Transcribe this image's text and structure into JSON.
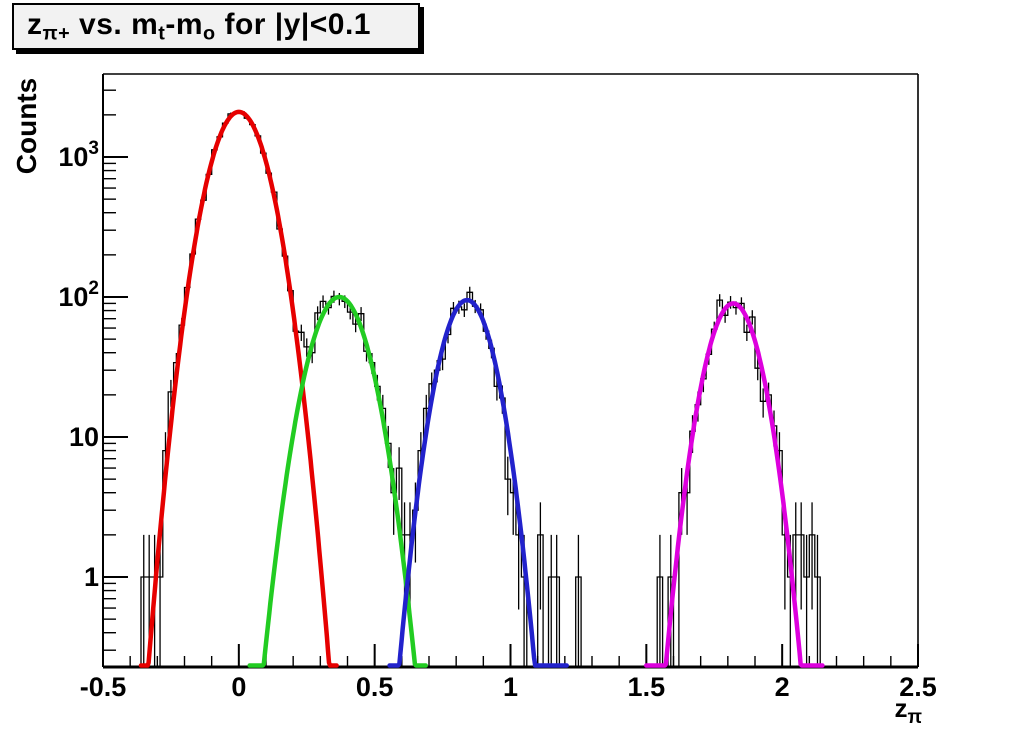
{
  "chart_data": {
    "type": "histogram",
    "title_plain": "z_{pi+} vs. m_t-m_o for |y|<0.1",
    "title_parts": [
      {
        "t": "z"
      },
      {
        "t": "π+",
        "sub": true
      },
      {
        "t": " vs. m"
      },
      {
        "t": "t",
        "sub": true
      },
      {
        "t": "-m"
      },
      {
        "t": "o",
        "sub": true
      },
      {
        "t": " for |y|<0.1"
      }
    ],
    "ylabel": "Counts",
    "xlabel_plain": "z_{pi}",
    "xlabel_parts": [
      {
        "t": "z"
      },
      {
        "t": "π",
        "sub": true
      }
    ],
    "x_axis": {
      "min": -0.5,
      "max": 2.5,
      "major_ticks": [
        -0.5,
        0,
        0.5,
        1,
        1.5,
        2,
        2.5
      ],
      "labels": [
        "-0.5",
        "0",
        "0.5",
        "1",
        "1.5",
        "2",
        "2.5"
      ],
      "minor_step": 0.1
    },
    "y_axis": {
      "scale": "log",
      "min": 0.227,
      "max": 3900,
      "major_ticks": [
        1,
        10,
        100,
        1000
      ],
      "labels": [
        {
          "v": 1,
          "base": "1",
          "sup": ""
        },
        {
          "v": 10,
          "base": "10",
          "sup": ""
        },
        {
          "v": 100,
          "base": "10",
          "sup": "2"
        },
        {
          "v": 1000,
          "base": "10",
          "sup": "3"
        }
      ]
    },
    "histogram": {
      "bins": 150,
      "x_min": -0.5,
      "x_max": 2.5,
      "bin_width": 0.02,
      "color": "#000000",
      "noise_seed": 11,
      "extra_bins": [
        {
          "x": -0.355,
          "n": 1
        },
        {
          "x": 1.115,
          "n": 2
        },
        {
          "x": 1.155,
          "n": 1
        },
        {
          "x": 1.175,
          "n": 1
        },
        {
          "x": 1.245,
          "n": 1
        },
        {
          "x": 2.07,
          "n": 2
        },
        {
          "x": 2.09,
          "n": 1
        },
        {
          "x": 2.105,
          "n": 2
        },
        {
          "x": 2.125,
          "n": 1
        }
      ]
    },
    "fits": [
      {
        "name": "peak-1-red",
        "color": "#e60000",
        "amplitude": 2100,
        "mean": 0.0,
        "sigma": 0.078,
        "range": [
          -0.36,
          0.36
        ]
      },
      {
        "name": "peak-2-green",
        "color": "#22cc22",
        "amplitude": 100,
        "mean": 0.37,
        "sigma": 0.08,
        "range": [
          0.04,
          0.69
        ]
      },
      {
        "name": "peak-3-blue",
        "color": "#2222cc",
        "amplitude": 95,
        "mean": 0.84,
        "sigma": 0.072,
        "range": [
          0.555,
          1.21
        ]
      },
      {
        "name": "peak-4-magenta",
        "color": "#dd00dd",
        "amplitude": 90,
        "mean": 1.82,
        "sigma": 0.072,
        "range": [
          1.5,
          2.15
        ]
      }
    ]
  }
}
